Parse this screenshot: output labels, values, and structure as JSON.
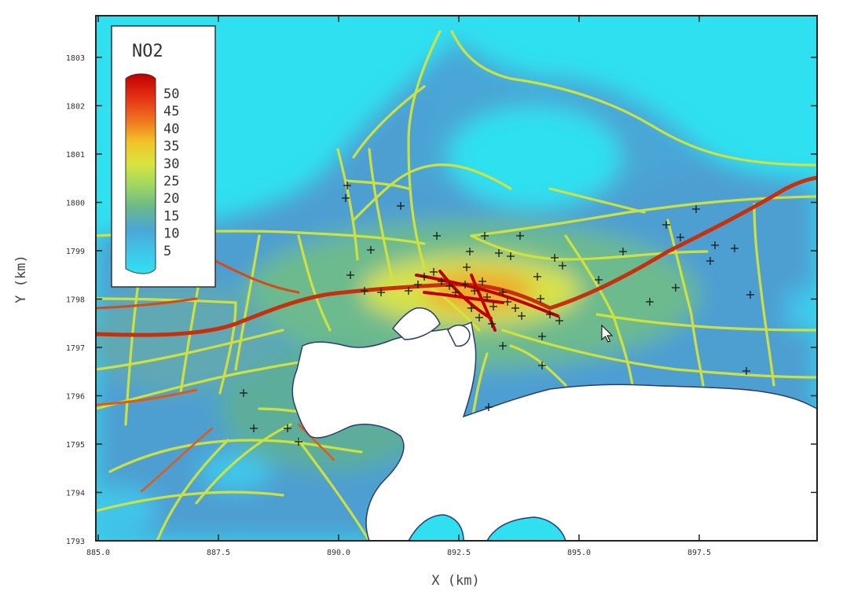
{
  "map": {
    "pollutant": "NO2",
    "legend": {
      "title": "NO2",
      "levels": [
        "50",
        "45",
        "40",
        "35",
        "30",
        "25",
        "20",
        "15",
        "10",
        "5"
      ],
      "colors": [
        "#c00000",
        "#e43214",
        "#f07a1e",
        "#f2c22a",
        "#d8e53c",
        "#9ed662",
        "#6ab88c",
        "#4aa6d6",
        "#3fc6ea",
        "#2fe0f0"
      ]
    },
    "x_axis": {
      "label": "X  (km)",
      "ticks": [
        "885.0",
        "887.5",
        "890.0",
        "892.5",
        "895.0",
        "897.5"
      ]
    },
    "y_axis": {
      "label": "Y  (km)",
      "ticks": [
        "1803",
        "1802",
        "1801",
        "1800",
        "1799",
        "1798",
        "1797",
        "1796",
        "1795",
        "1794",
        "1793"
      ]
    },
    "colors": {
      "sea": "#2fe0f0",
      "background_low": "#55a8dc",
      "mid": "#4b9cc4",
      "road": "#d8e53c",
      "highway": "#c8300c",
      "water": "#ffffff"
    }
  }
}
